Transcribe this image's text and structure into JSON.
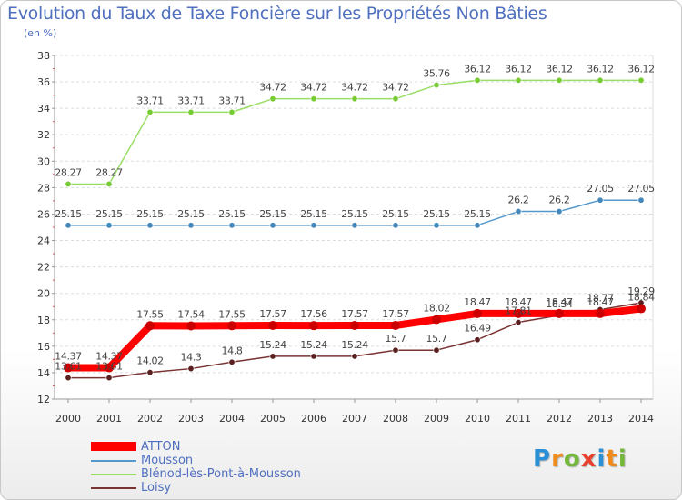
{
  "header": {
    "title": "Evolution du Taux de Taxe Foncière sur les Propriétés Non Bâties",
    "subtitle": "(en %)"
  },
  "logo": {
    "letters": [
      "P",
      "r",
      "o",
      "x",
      "i",
      "t",
      "i"
    ],
    "colors": [
      "#2a8fd6",
      "#f08a18",
      "#74b83a",
      "#e8402c",
      "#2a8fd6",
      "#f08a18",
      "#74b83a"
    ]
  },
  "chart_data": {
    "type": "line",
    "title": "Evolution du Taux de Taxe Foncière sur les Propriétés Non Bâties",
    "ylabel": "(en %)",
    "xlabel": "",
    "ylim": [
      12,
      38
    ],
    "yticks": [
      12,
      14,
      16,
      18,
      20,
      22,
      24,
      26,
      28,
      30,
      32,
      34,
      36,
      38
    ],
    "x": [
      "2000",
      "2001",
      "2002",
      "2003",
      "2004",
      "2005",
      "2006",
      "2007",
      "2008",
      "2009",
      "2010",
      "2011",
      "2012",
      "2013",
      "2014"
    ],
    "grid": "horizontal",
    "legend_position": "bottom-left",
    "series": [
      {
        "name": "Blénod-lès-Pont-à-Mousson",
        "color": "#99dd66",
        "marker_color": "#77cc33",
        "values": [
          28.27,
          28.27,
          33.71,
          33.71,
          33.71,
          34.72,
          34.72,
          34.72,
          34.72,
          35.76,
          36.12,
          36.12,
          36.12,
          36.12,
          36.12
        ],
        "labels": [
          "28.27",
          "28.27",
          "33.71",
          "33.71",
          "33.71",
          "34.72",
          "34.72",
          "34.72",
          "34.72",
          "35.76",
          "36.12",
          "36.12",
          "36.12",
          "36.12",
          "36.12"
        ]
      },
      {
        "name": "Mousson",
        "color": "#5599cc",
        "marker_color": "#4488bb",
        "values": [
          25.15,
          25.15,
          25.15,
          25.15,
          25.15,
          25.15,
          25.15,
          25.15,
          25.15,
          25.15,
          25.15,
          26.2,
          26.2,
          27.05,
          27.05
        ],
        "labels": [
          "25.15",
          "25.15",
          "25.15",
          "25.15",
          "25.15",
          "25.15",
          "25.15",
          "25.15",
          "25.15",
          "25.15",
          "25.15",
          "26.2",
          "26.2",
          "27.05",
          "27.05"
        ]
      },
      {
        "name": "Loisy",
        "color": "#7a3333",
        "marker_color": "#5a1f1f",
        "values": [
          13.61,
          13.61,
          14.02,
          14.3,
          14.8,
          15.24,
          15.24,
          15.24,
          15.7,
          15.7,
          16.49,
          17.81,
          18.34,
          18.77,
          19.29
        ],
        "labels": [
          "13.61",
          "13.61",
          "14.02",
          "14.3",
          "14.8",
          "15.24",
          "15.24",
          "15.24",
          "15.7",
          "15.7",
          "16.49",
          "17.81",
          "18.34",
          "18.77",
          "19.29"
        ]
      },
      {
        "name": "ATTON",
        "color": "#ff0000",
        "marker_color": "#cc0000",
        "values": [
          14.37,
          14.37,
          17.55,
          17.54,
          17.55,
          17.57,
          17.56,
          17.57,
          17.57,
          18.02,
          18.47,
          18.47,
          18.47,
          18.47,
          18.84
        ],
        "labels": [
          "14.37",
          "14.37",
          "17.55",
          "17.54",
          "17.55",
          "17.57",
          "17.56",
          "17.57",
          "17.57",
          "18.02",
          "18.47",
          "18.47",
          "18.47",
          "18.47",
          "18.84"
        ]
      }
    ],
    "legend": [
      {
        "name": "ATTON",
        "color": "#ff0000"
      },
      {
        "name": "Mousson",
        "color": "#5599cc"
      },
      {
        "name": "Blénod-lès-Pont-à-Mousson",
        "color": "#99dd66"
      },
      {
        "name": "Loisy",
        "color": "#7a3333"
      }
    ]
  }
}
